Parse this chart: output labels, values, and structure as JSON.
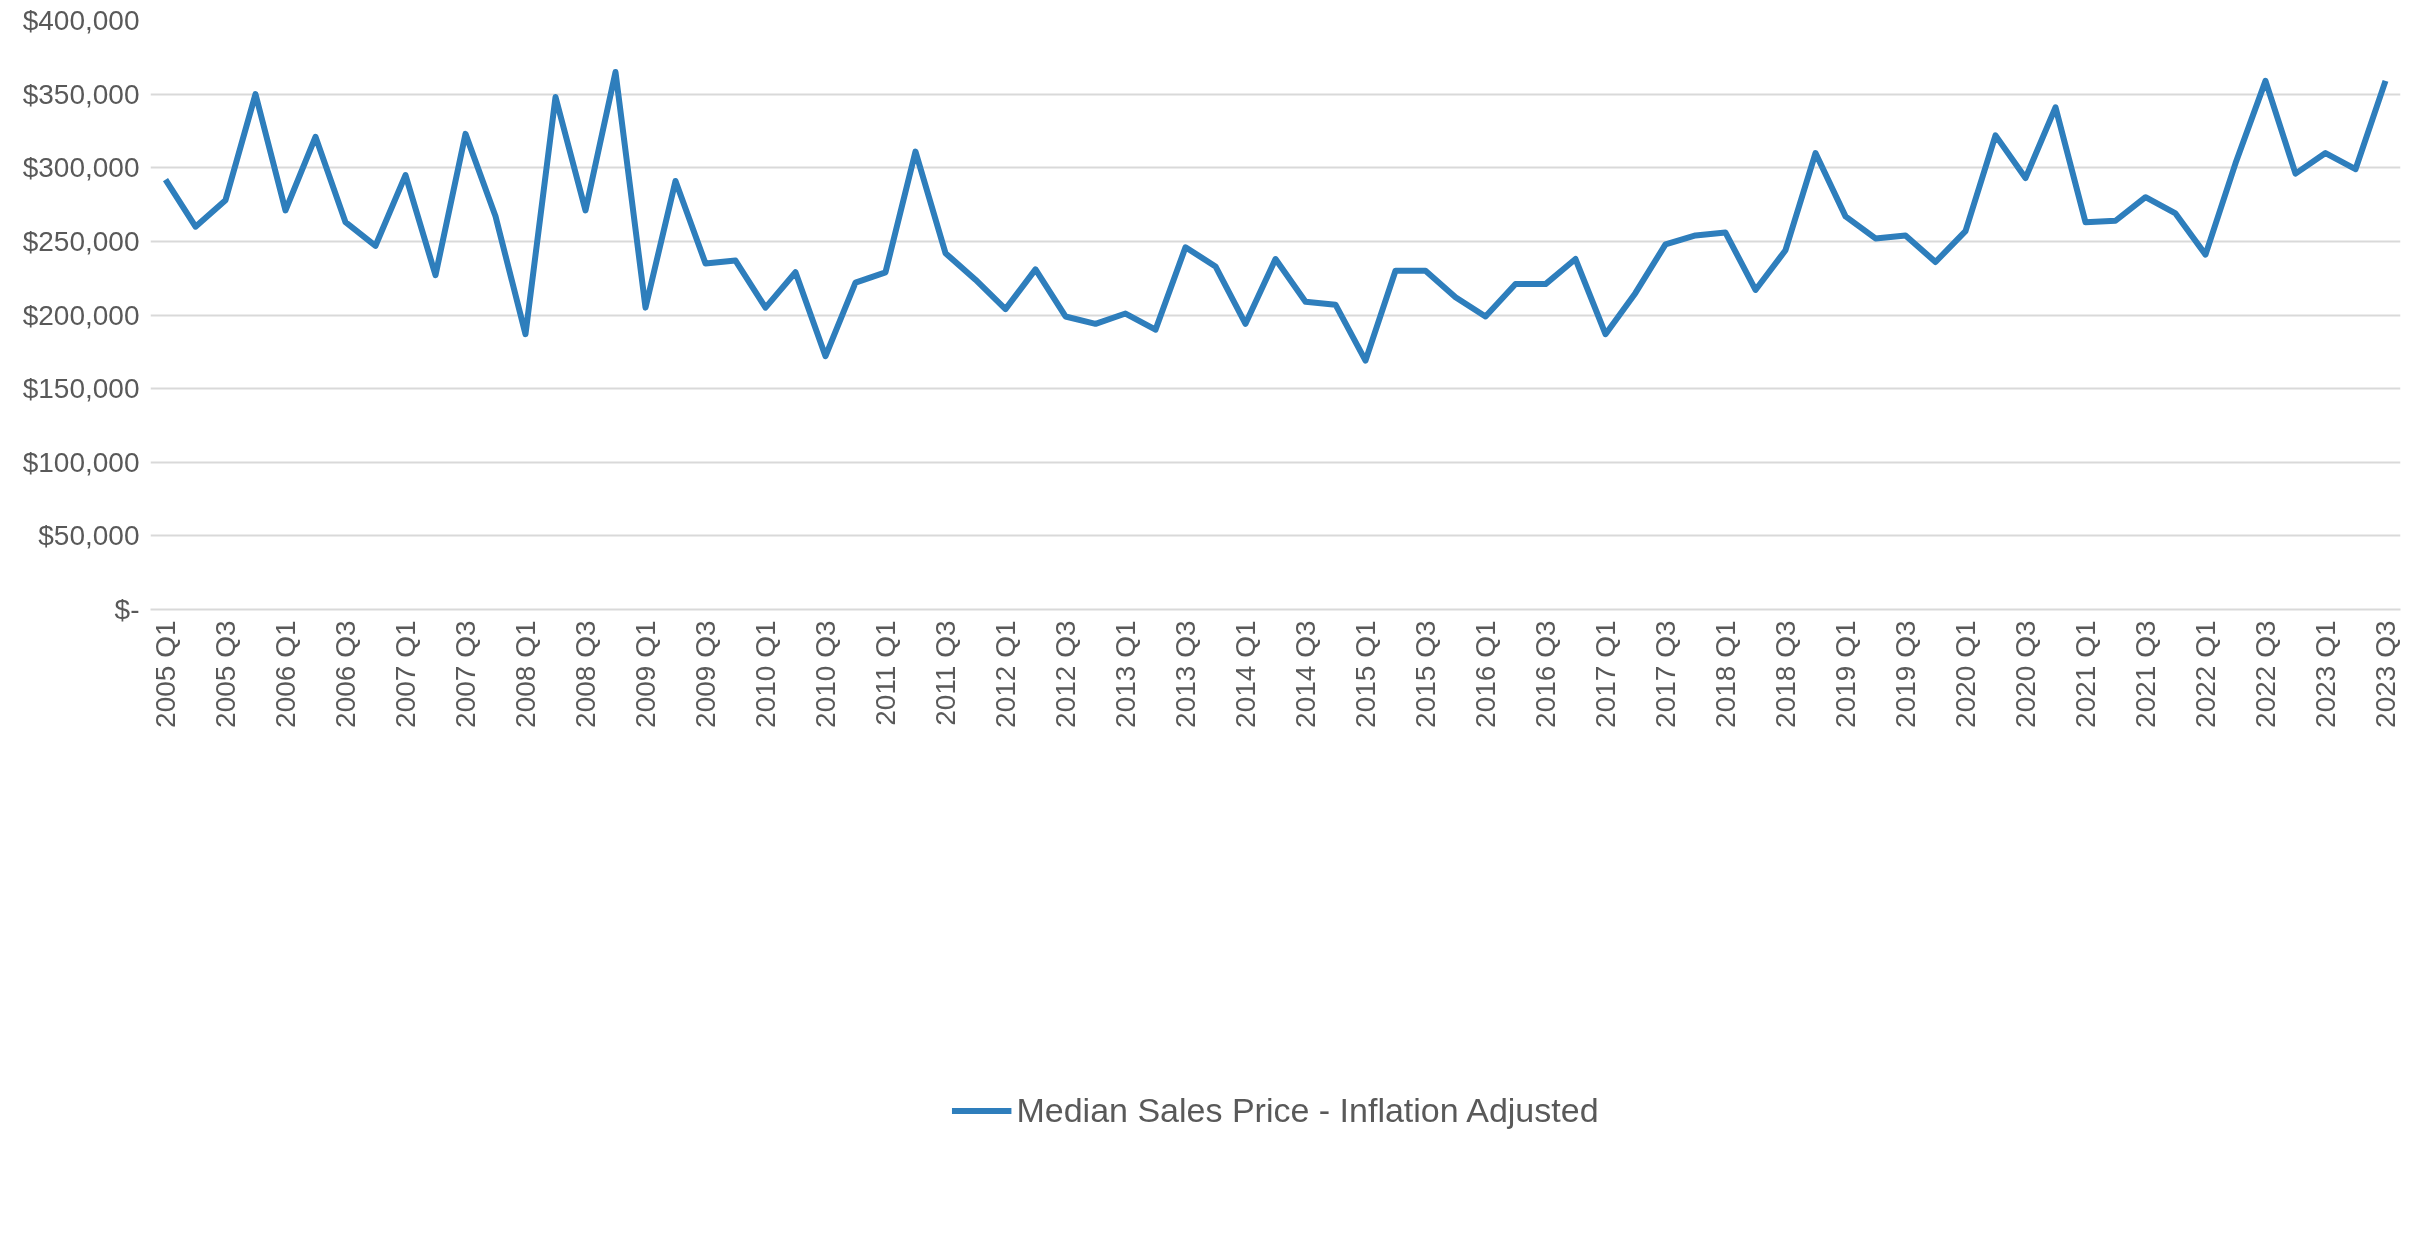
{
  "chart_data": {
    "type": "line",
    "categories": [
      "2005 Q1",
      null,
      "2005 Q3",
      null,
      "2006 Q1",
      null,
      "2006 Q3",
      null,
      "2007 Q1",
      null,
      "2007 Q3",
      null,
      "2008 Q1",
      null,
      "2008 Q3",
      null,
      "2009 Q1",
      null,
      "2009 Q3",
      null,
      "2010 Q1",
      null,
      "2010 Q3",
      null,
      "2011 Q1",
      null,
      "2011 Q3",
      null,
      "2012 Q1",
      null,
      "2012 Q3",
      null,
      "2013 Q1",
      null,
      "2013 Q3",
      null,
      "2014 Q1",
      null,
      "2014 Q3",
      null,
      "2015 Q1",
      null,
      "2015 Q3",
      null,
      "2016 Q1",
      null,
      "2016 Q3",
      null,
      "2017 Q1",
      null,
      "2017 Q3",
      null,
      "2018 Q1",
      null,
      "2018 Q3",
      null,
      "2019 Q1",
      null,
      "2019 Q3",
      null,
      "2020 Q1",
      null,
      "2020 Q3",
      null,
      "2021 Q1",
      null,
      "2021 Q3",
      null,
      "2022 Q1",
      null,
      "2022 Q3",
      null,
      "2023 Q1",
      null,
      "2023 Q3"
    ],
    "series": [
      {
        "name": "Median Sales Price - Inflation Adjusted",
        "color": "#2e7ebc",
        "values": [
          292000,
          260000,
          278000,
          350000,
          271000,
          321000,
          263000,
          247000,
          295000,
          227000,
          323000,
          267000,
          187000,
          348000,
          271000,
          365000,
          205000,
          291000,
          235000,
          237000,
          205000,
          229000,
          172000,
          222000,
          229000,
          311000,
          242000,
          224000,
          204000,
          231000,
          199000,
          194000,
          201000,
          190000,
          246000,
          233000,
          194000,
          238000,
          209000,
          207000,
          169000,
          230000,
          230000,
          212000,
          199000,
          221000,
          221000,
          238000,
          187000,
          215000,
          248000,
          254000,
          256000,
          217000,
          244000,
          310000,
          267000,
          252000,
          254000,
          236000,
          257000,
          322000,
          293000,
          341000,
          263000,
          264000,
          280000,
          269000,
          241000,
          303000,
          359000,
          296000,
          310000,
          299000,
          359000
        ]
      }
    ],
    "ylim": [
      0,
      400000
    ],
    "yticks": [
      {
        "value": 0,
        "label": "$-"
      },
      {
        "value": 50000,
        "label": "$50,000"
      },
      {
        "value": 100000,
        "label": "$100,000"
      },
      {
        "value": 150000,
        "label": "$150,000"
      },
      {
        "value": 200000,
        "label": "$200,000"
      },
      {
        "value": 250000,
        "label": "$250,000"
      },
      {
        "value": 300000,
        "label": "$300,000"
      },
      {
        "value": 350000,
        "label": "$350,000"
      },
      {
        "value": 400000,
        "label": "$400,000"
      }
    ],
    "grid": "y",
    "legend": "bottom",
    "line_style": "solid"
  }
}
